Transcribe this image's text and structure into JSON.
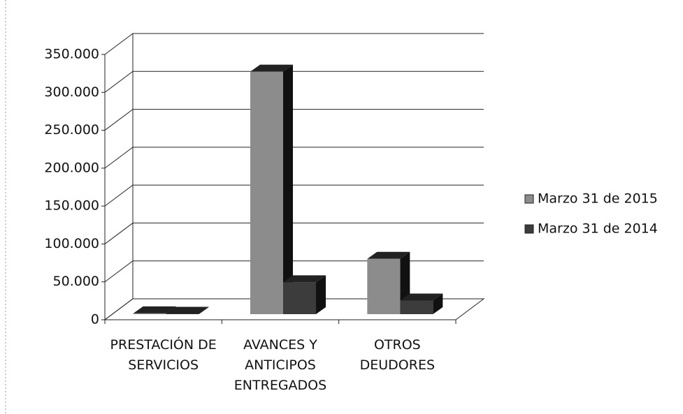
{
  "chart_data": {
    "type": "bar3d",
    "categories": [
      "PRESTACIÓN DE SERVICIOS",
      "AVANCES Y ANTICIPOS ENTREGADOS",
      "OTROS DEUDORES"
    ],
    "series": [
      {
        "name": "Marzo 31 de 2015",
        "color": "#8c8c8c",
        "values": [
          1000,
          320000,
          73000
        ]
      },
      {
        "name": "Marzo 31 de 2014",
        "color": "#3c3c3c",
        "values": [
          500,
          42000,
          18000
        ]
      }
    ],
    "ylim": [
      0,
      350000
    ],
    "yticks": [
      0,
      {
        "value": 50000,
        "label": "50.000"
      },
      {
        "value": 100000,
        "label": "100.000"
      },
      {
        "value": 150000,
        "label": "150.000"
      },
      {
        "value": 200000,
        "label": "200.000"
      },
      {
        "value": 250000,
        "label": "250.000"
      },
      {
        "value": 300000,
        "label": "300.000"
      },
      {
        "value": 350000,
        "label": "350.000"
      }
    ],
    "grid": true,
    "legend": "right"
  }
}
